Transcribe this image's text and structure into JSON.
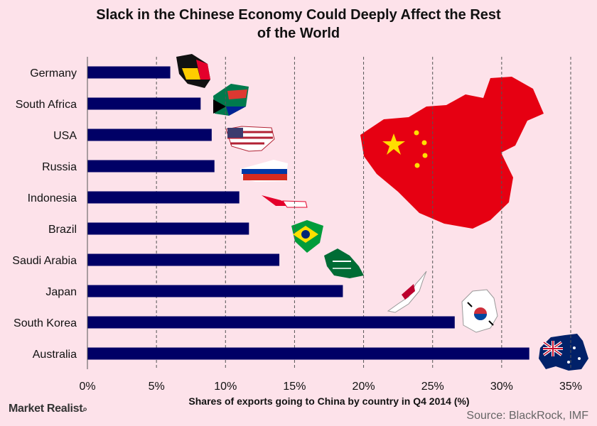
{
  "chart_data": {
    "type": "bar",
    "orientation": "horizontal",
    "title": "Slack in the Chinese Economy Could Deeply Affect the Rest of the World",
    "xlabel": "Shares of exports going to China by country in Q4 2014 (%)",
    "categories": [
      "Germany",
      "South Africa",
      "USA",
      "Russia",
      "Indonesia",
      "Brazil",
      "Saudi Arabia",
      "Japan",
      "South Korea",
      "Australia"
    ],
    "values": [
      6.0,
      8.2,
      9.0,
      9.2,
      11.0,
      11.7,
      13.9,
      18.5,
      26.6,
      32.0
    ],
    "xlim": [
      0,
      35
    ],
    "xticks": [
      "0%",
      "5%",
      "10%",
      "15%",
      "20%",
      "25%",
      "30%",
      "35%"
    ],
    "grid": "vertical dashed",
    "bar_color": "#000066"
  },
  "title_lines": [
    "Slack in the Chinese Economy Could Deeply Affect the Rest",
    "of the World"
  ],
  "brand": "Market Realist",
  "source": "Source: BlackRock, IMF"
}
